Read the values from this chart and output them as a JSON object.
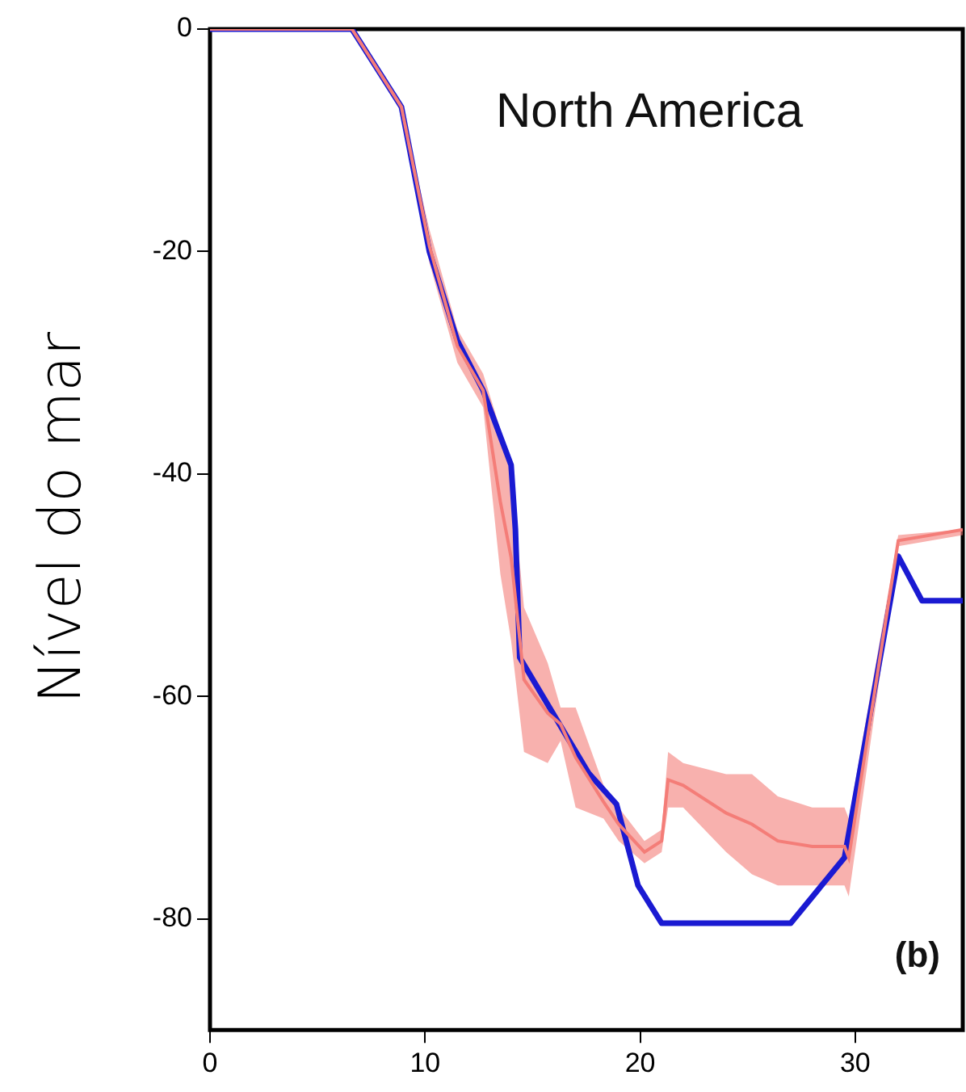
{
  "chart_data": {
    "type": "line",
    "title": "North America",
    "ylabel": "Nível do mar",
    "annotations": [
      "(b)"
    ],
    "xlim": [
      0,
      35
    ],
    "ylim": [
      -90,
      0
    ],
    "xticks": [
      0,
      10,
      20,
      30
    ],
    "yticks": [
      0,
      -20,
      -40,
      -60,
      -80
    ],
    "grid": false,
    "legend": false,
    "marker": "none",
    "line_style": "solid",
    "series": [
      {
        "type": "line",
        "color": "#f47d78",
        "x": [
          0,
          6.6,
          8.9,
          10.2,
          11.5,
          12.7,
          13.5,
          14,
          14.6,
          15.7,
          16.3,
          17,
          18.3,
          19,
          20.2,
          21,
          21.3,
          22,
          24,
          25.2,
          26.4,
          28,
          29.5,
          29.7,
          32,
          35
        ],
        "values": [
          0,
          0,
          -7,
          -19.5,
          -28.5,
          -32.5,
          -42.5,
          -47.5,
          -58.5,
          -61.5,
          -62.5,
          -65.5,
          -69.5,
          -71.5,
          -74,
          -73,
          -67.5,
          -68,
          -70.5,
          -71.5,
          -73,
          -73.5,
          -73.5,
          -74.5,
          -46,
          -45
        ],
        "upper": [
          0,
          0,
          -7,
          -18,
          -27,
          -31,
          -36,
          -40,
          -52,
          -57,
          -61,
          -61,
          -68,
          -70,
          -73,
          -72,
          -65,
          -66,
          -67,
          -67,
          -69,
          -70,
          -70,
          -71,
          -45.5,
          -45
        ],
        "lower": [
          0,
          0,
          -7.5,
          -21,
          -30,
          -34,
          -49,
          -55,
          -65,
          -66,
          -64,
          -70,
          -71,
          -73,
          -75,
          -74,
          -70,
          -70,
          -74,
          -76,
          -77,
          -77,
          -77,
          -78,
          -46.5,
          -45.5
        ]
      },
      {
        "type": "line",
        "color": "#1a1ad2",
        "x": [
          0,
          6.6,
          8.9,
          10.2,
          11.5,
          12.7,
          14,
          14.2,
          14.4,
          17.6,
          18.9,
          19.9,
          21,
          27,
          29.5,
          32,
          33.1,
          35
        ],
        "values": [
          0,
          0,
          -7,
          -20,
          -28,
          -32.5,
          -39.2,
          -45,
          -56.5,
          -66.9,
          -69.7,
          -77,
          -80.4,
          -80.4,
          -74.5,
          -47.4,
          -51.4,
          -51.4
        ]
      }
    ]
  }
}
